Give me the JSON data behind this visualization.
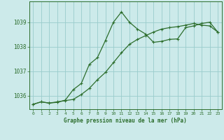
{
  "title": "Graphe pression niveau de la mer (hPa)",
  "background_color": "#cceaea",
  "line_color": "#2d6e2d",
  "grid_color": "#99cccc",
  "xlim": [
    -0.5,
    23.5
  ],
  "ylim": [
    1035.45,
    1039.85
  ],
  "yticks": [
    1036,
    1037,
    1038,
    1039
  ],
  "xticks": [
    0,
    1,
    2,
    3,
    4,
    5,
    6,
    7,
    8,
    9,
    10,
    11,
    12,
    13,
    14,
    15,
    16,
    17,
    18,
    19,
    20,
    21,
    22,
    23
  ],
  "series1_x": [
    0,
    1,
    2,
    3,
    4,
    5,
    6,
    7,
    8,
    9,
    10,
    11,
    12,
    13,
    14,
    15,
    16,
    17,
    18,
    19,
    20,
    21,
    22,
    23
  ],
  "series1_y": [
    1035.65,
    1035.75,
    1035.7,
    1035.75,
    1035.8,
    1035.85,
    1036.05,
    1036.3,
    1036.65,
    1036.95,
    1037.35,
    1037.75,
    1038.1,
    1038.3,
    1038.45,
    1038.6,
    1038.72,
    1038.78,
    1038.82,
    1038.88,
    1038.95,
    1038.88,
    1038.85,
    1038.6
  ],
  "series2_x": [
    0,
    1,
    2,
    3,
    4,
    5,
    6,
    7,
    8,
    9,
    10,
    11,
    12,
    13,
    14,
    15,
    16,
    17,
    18,
    19,
    20,
    21,
    22,
    23
  ],
  "series2_y": [
    1035.65,
    1035.75,
    1035.7,
    1035.73,
    1035.82,
    1036.25,
    1036.5,
    1037.28,
    1037.55,
    1038.25,
    1039.0,
    1039.42,
    1039.0,
    1038.72,
    1038.52,
    1038.18,
    1038.22,
    1038.3,
    1038.32,
    1038.78,
    1038.85,
    1038.95,
    1039.0,
    1038.6
  ]
}
